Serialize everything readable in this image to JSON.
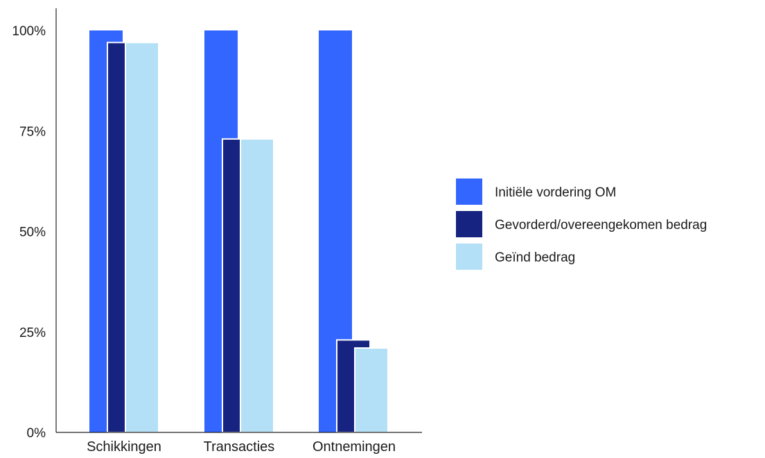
{
  "chart_data": {
    "type": "bar",
    "categories": [
      "Schikkingen",
      "Transacties",
      "Ontnemingen"
    ],
    "series": [
      {
        "name": "Initiële vordering OM",
        "color": "#3366ff",
        "values": [
          100,
          100,
          100
        ]
      },
      {
        "name": "Gevorderd/overeengekomen bedrag",
        "color": "#162380",
        "values": [
          97,
          73,
          23
        ]
      },
      {
        "name": "Geïnd bedrag",
        "color": "#b3e0f7",
        "values": [
          97,
          73,
          21
        ]
      }
    ],
    "yticks": [
      "0%",
      "25%",
      "50%",
      "75%",
      "100%"
    ],
    "ytick_values": [
      0,
      25,
      50,
      75,
      100
    ],
    "ylim": [
      0,
      100
    ],
    "grid": false,
    "legend_position": "right",
    "title": "",
    "xlabel": "",
    "ylabel": ""
  }
}
